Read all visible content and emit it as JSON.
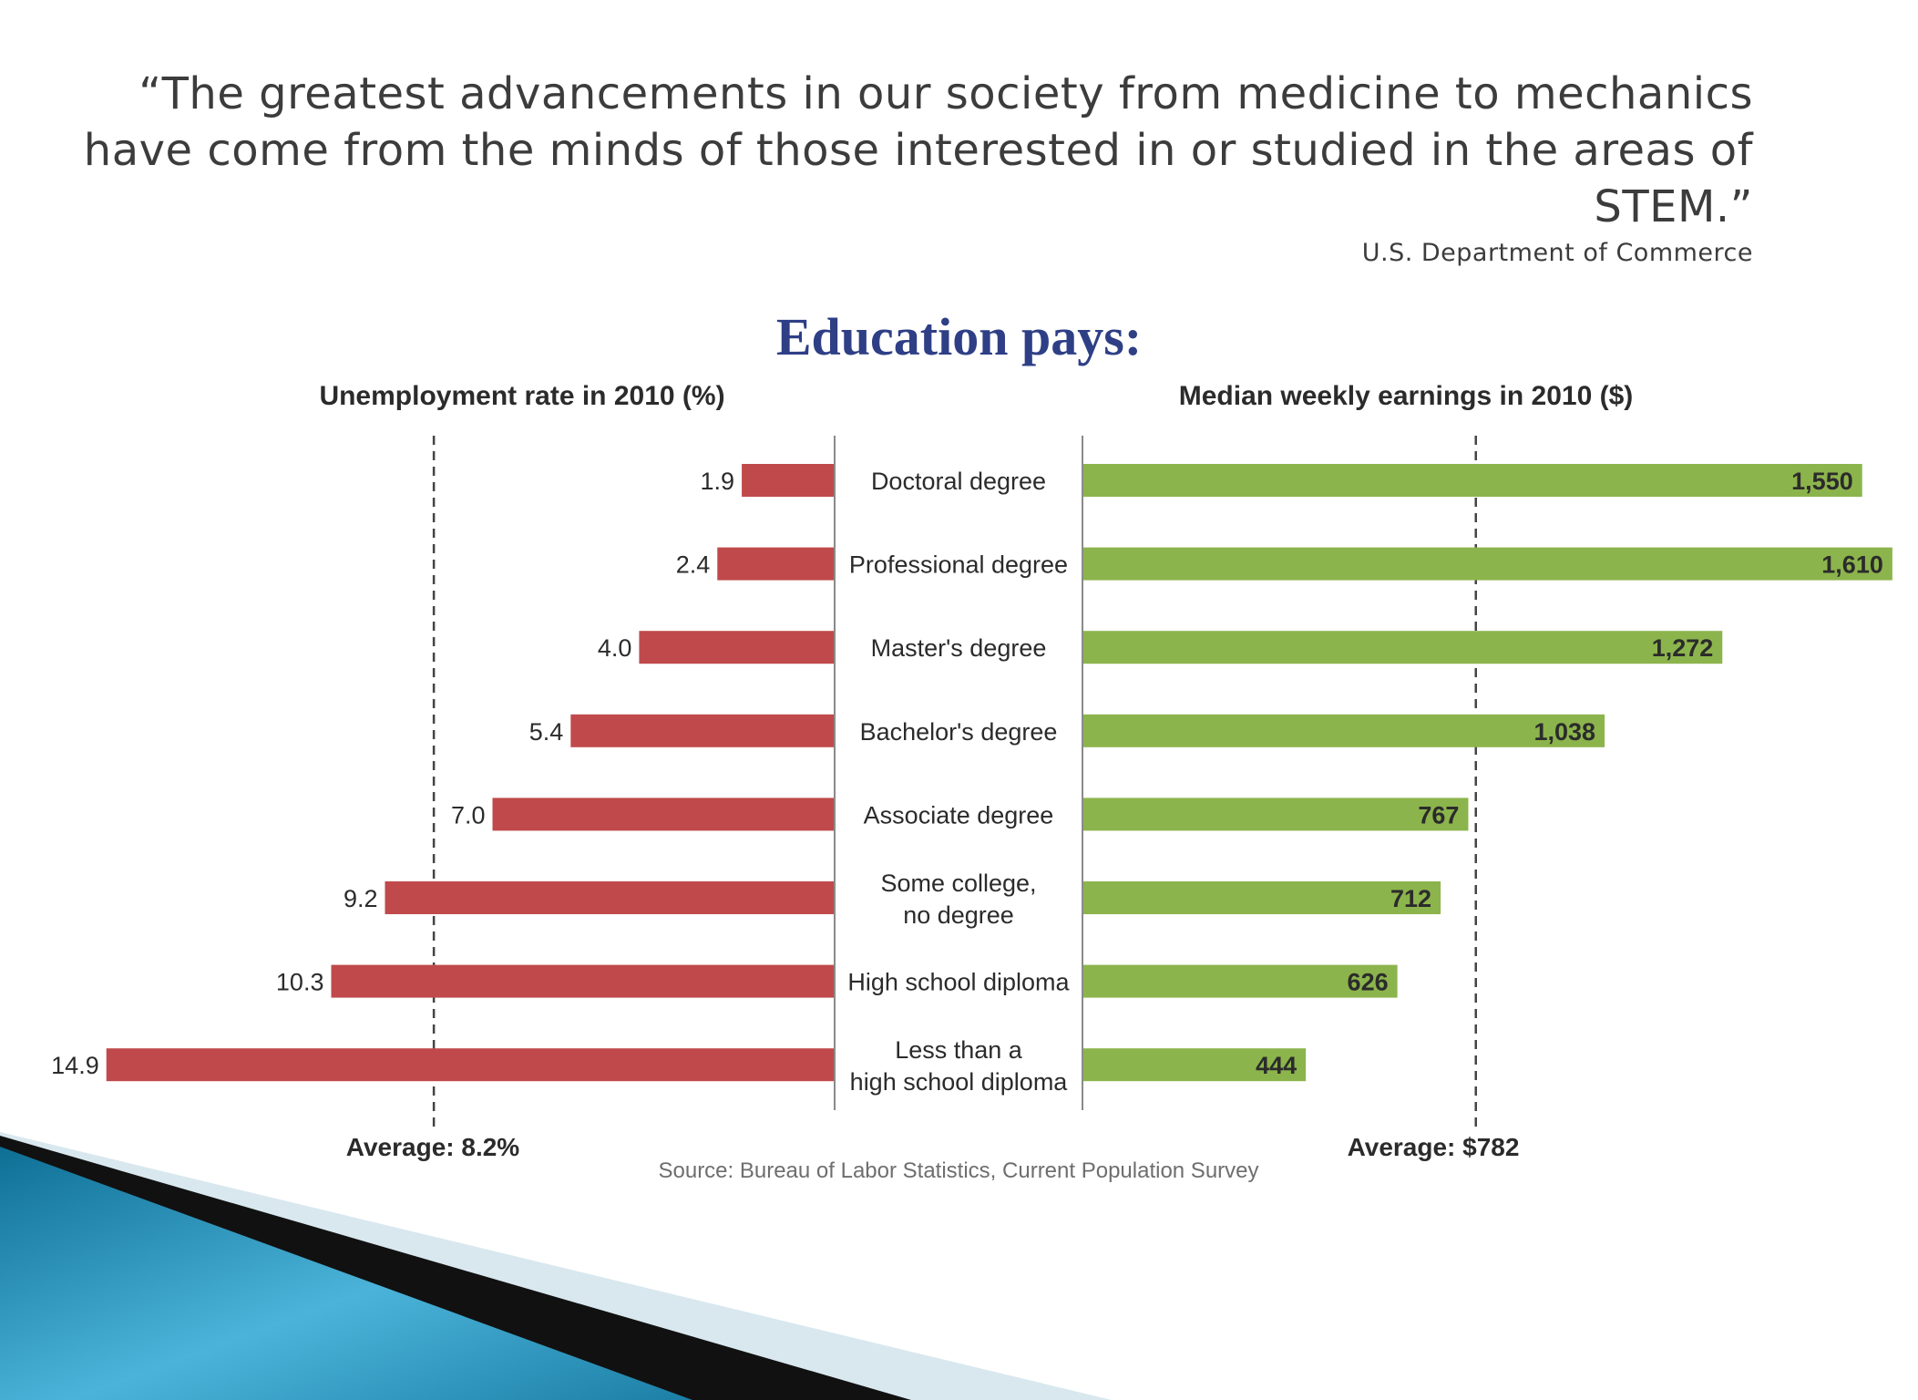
{
  "slide": {
    "quote": "“The greatest advancements in our society from medicine to mechanics have come from the minds of those interested in or studied in the areas of STEM.”",
    "attribution": "U.S. Department of Commerce"
  },
  "colors": {
    "unemployment_bar": "#c0494b",
    "earnings_bar": "#8cb44c",
    "title": "#2e3f86",
    "text": "#2b2b2b",
    "source": "#6e6e6e",
    "deco_blue": "#1c7fa6",
    "deco_dark": "#000000"
  },
  "chart_data": {
    "type": "bar",
    "orientation": "horizontal",
    "layout": "back-to-back",
    "title": "Education pays:",
    "categories": [
      "Doctoral degree",
      "Professional degree",
      "Master's degree",
      "Bachelor's degree",
      "Associate degree",
      "Some college,\nno degree",
      "High school diploma",
      "Less than a\nhigh school diploma"
    ],
    "series": [
      {
        "name": "Unemployment rate in 2010 (%)",
        "side": "left",
        "values": [
          1.9,
          2.4,
          4.0,
          5.4,
          7.0,
          9.2,
          10.3,
          14.9
        ],
        "value_labels": [
          "1.9",
          "2.4",
          "4.0",
          "5.4",
          "7.0",
          "9.2",
          "10.3",
          "14.9"
        ],
        "average": 8.2,
        "average_label": "Average: 8.2%",
        "color": "#c0494b",
        "xlim": [
          0,
          15.1
        ]
      },
      {
        "name": "Median weekly earnings in 2010 ($)",
        "side": "right",
        "values": [
          1550,
          1610,
          1272,
          1038,
          767,
          712,
          626,
          444
        ],
        "value_labels": [
          "1,550",
          "1,610",
          "1,272",
          "1,038",
          "767",
          "712",
          "626",
          "444"
        ],
        "average": 782,
        "average_label": "Average: $782",
        "color": "#8cb44c",
        "xlim": [
          0,
          1670
        ]
      }
    ],
    "source": "Source: Bureau of Labor Statistics, Current Population Survey",
    "grid": false,
    "legend": "none"
  }
}
